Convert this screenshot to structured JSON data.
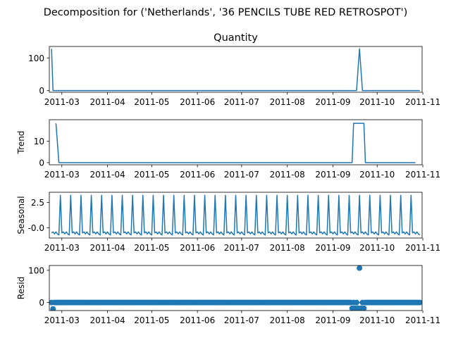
{
  "figure": {
    "suptitle": "Decomposition for ('Netherlands', '36 PENCILS TUBE RED RETROSPOT')"
  },
  "colors": {
    "line": "#1f77b4",
    "axes": "#000000",
    "background": "#ffffff"
  },
  "chart_data": [
    {
      "type": "line",
      "title": "Quantity",
      "ylabel": "",
      "x_dates": [
        "2011-02-22",
        "2011-02-23",
        "2011-09-17",
        "2011-09-19",
        "2011-09-21",
        "2011-10-30"
      ],
      "values": [
        128,
        0,
        0,
        128,
        0,
        0
      ],
      "ylim": [
        -5,
        135
      ],
      "y_ticks": [
        0,
        100
      ],
      "x_ticks": [
        "2011-03",
        "2011-04",
        "2011-05",
        "2011-06",
        "2011-07",
        "2011-08",
        "2011-09",
        "2011-10",
        "2011-11"
      ],
      "grid": false
    },
    {
      "type": "line",
      "title": "",
      "ylabel": "Trend",
      "x_dates": [
        "2011-02-25",
        "2011-02-27",
        "2011-09-14",
        "2011-09-15",
        "2011-09-22",
        "2011-09-23",
        "2011-10-27"
      ],
      "values": [
        18.3,
        0,
        0,
        18.3,
        18.3,
        0,
        0
      ],
      "ylim": [
        -1,
        20
      ],
      "y_ticks": [
        0,
        10
      ],
      "x_ticks": [
        "2011-03",
        "2011-04",
        "2011-05",
        "2011-06",
        "2011-07",
        "2011-08",
        "2011-09",
        "2011-10",
        "2011-11"
      ],
      "grid": false
    },
    {
      "type": "line",
      "title": "",
      "ylabel": "Seasonal",
      "period_days": 7,
      "x_start": "2011-02-22",
      "x_end": "2011-10-30",
      "weekly_pattern": [
        -0.5,
        -0.4,
        -0.6,
        -0.4,
        -0.6,
        -0.7,
        3.2
      ],
      "ylim": [
        -1.0,
        3.5
      ],
      "y_ticks": [
        -0.0,
        2.5
      ],
      "y_tick_labels": [
        "-0.0",
        "2.5"
      ],
      "x_ticks": [
        "2011-03",
        "2011-04",
        "2011-05",
        "2011-06",
        "2011-07",
        "2011-08",
        "2011-09",
        "2011-10",
        "2011-11"
      ],
      "grid": false
    },
    {
      "type": "scatter",
      "title": "",
      "ylabel": "Resid",
      "x_start": "2011-02-22",
      "x_end": "2011-10-30",
      "baseline_value": 0,
      "outliers": [
        {
          "date": "2011-02-23",
          "value": -20
        },
        {
          "date": "2011-09-14",
          "value": -18
        },
        {
          "date": "2011-09-16",
          "value": -18
        },
        {
          "date": "2011-09-18",
          "value": -18
        },
        {
          "date": "2011-09-19",
          "value": 107
        },
        {
          "date": "2011-09-20",
          "value": -18
        },
        {
          "date": "2011-09-22",
          "value": -18
        }
      ],
      "ylim": [
        -25,
        115
      ],
      "y_ticks": [
        0,
        100
      ],
      "x_ticks": [
        "2011-03",
        "2011-04",
        "2011-05",
        "2011-06",
        "2011-07",
        "2011-08",
        "2011-09",
        "2011-10",
        "2011-11"
      ],
      "grid": false
    }
  ]
}
